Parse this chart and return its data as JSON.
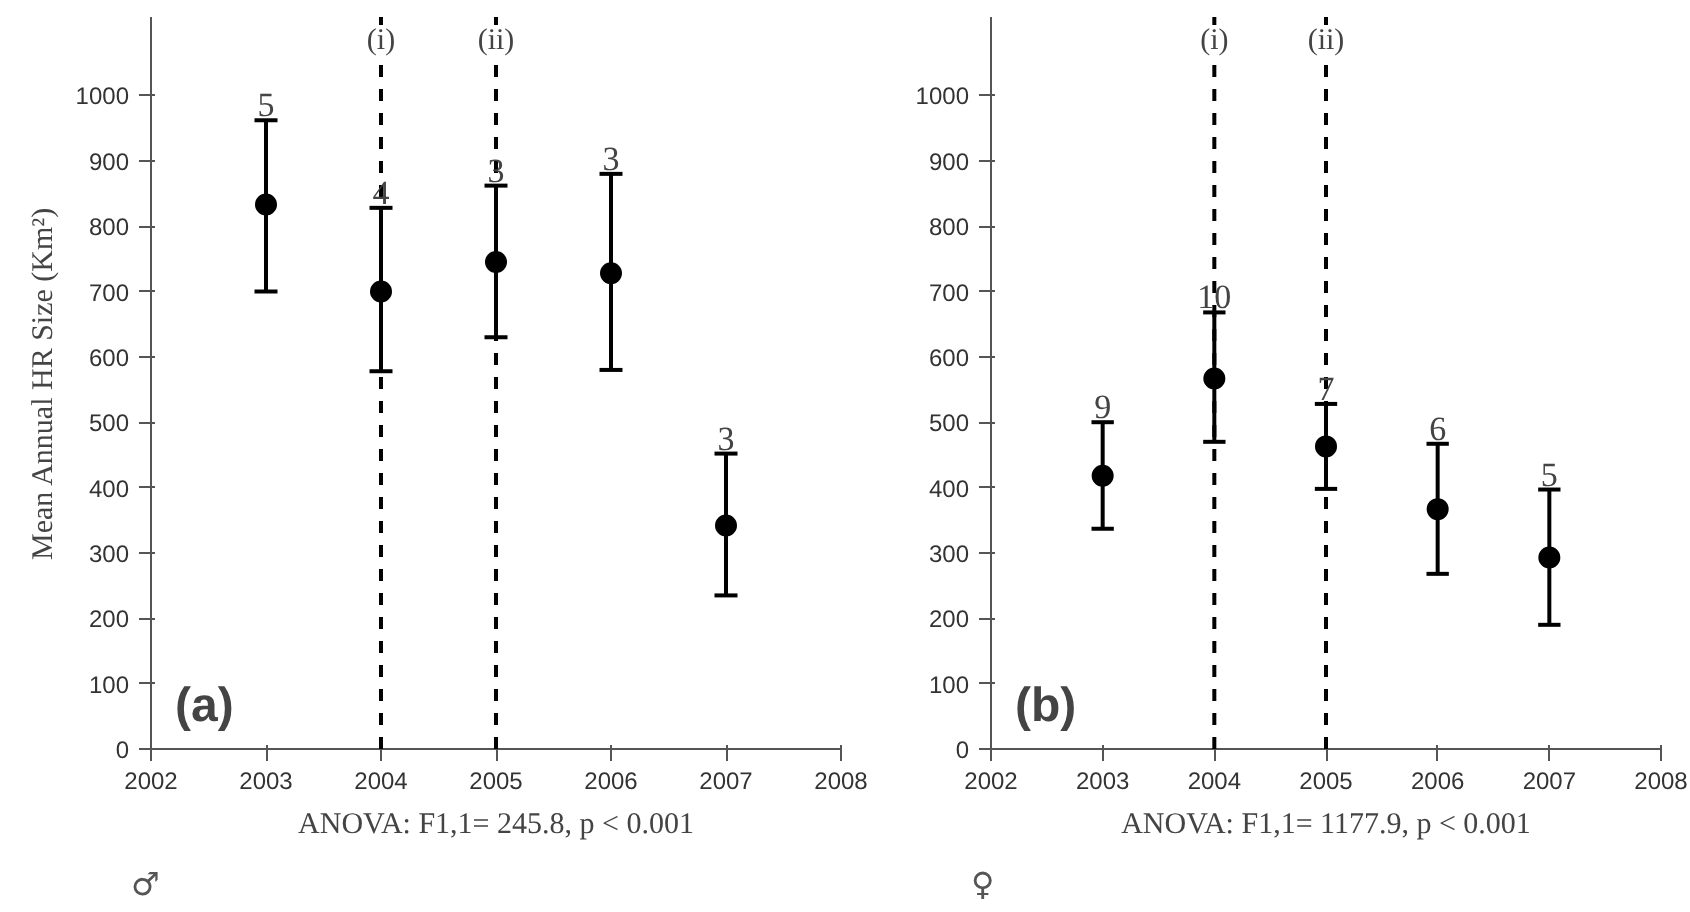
{
  "chart_data": [
    {
      "type": "scatter",
      "ylabel": "Mean Annual HR Size (Km²)",
      "x": [
        2003,
        2004,
        2005,
        2006,
        2007
      ],
      "values": [
        833,
        700,
        745,
        728,
        342
      ],
      "color": "#000000",
      "marker": "circle",
      "errors": [
        [
          700,
          962
        ],
        [
          578,
          828
        ],
        [
          630,
          862
        ],
        [
          580,
          880
        ],
        [
          235,
          452
        ]
      ],
      "xlim": [
        2002,
        2008
      ],
      "xticks": [
        2002,
        2003,
        2004,
        2005,
        2006,
        2007,
        2008
      ],
      "ylim": [
        0,
        1120
      ],
      "yticks": [
        0,
        100,
        200,
        300,
        400,
        500,
        600,
        700,
        800,
        900,
        1000
      ],
      "grid": false,
      "ref_lines": [
        {
          "axis": "x",
          "value": 2004,
          "label": "(i)",
          "line_style": "dashed"
        },
        {
          "axis": "x",
          "value": 2005,
          "label": "(ii)",
          "line_style": "dashed"
        }
      ],
      "annotations": [
        "(a)",
        "♂",
        "ANOVA: F1,1= 245.8, p < 0.001",
        {
          "text": "5",
          "x": 2003,
          "y": 962
        },
        {
          "text": "4",
          "x": 2004,
          "y": 828
        },
        {
          "text": "3",
          "x": 2005,
          "y": 862
        },
        {
          "text": "3",
          "x": 2006,
          "y": 880
        },
        {
          "text": "3",
          "x": 2007,
          "y": 452
        }
      ]
    },
    {
      "type": "scatter",
      "x": [
        2003,
        2004,
        2005,
        2006,
        2007
      ],
      "values": [
        418,
        567,
        463,
        367,
        293
      ],
      "color": "#000000",
      "marker": "circle",
      "errors": [
        [
          337,
          500
        ],
        [
          470,
          668
        ],
        [
          398,
          528
        ],
        [
          268,
          467
        ],
        [
          190,
          397
        ]
      ],
      "xlim": [
        2002,
        2008
      ],
      "xticks": [
        2002,
        2003,
        2004,
        2005,
        2006,
        2007,
        2008
      ],
      "ylim": [
        0,
        1120
      ],
      "yticks": [
        0,
        100,
        200,
        300,
        400,
        500,
        600,
        700,
        800,
        900,
        1000
      ],
      "grid": false,
      "ref_lines": [
        {
          "axis": "x",
          "value": 2004,
          "label": "(i)",
          "line_style": "dashed"
        },
        {
          "axis": "x",
          "value": 2005,
          "label": "(ii)",
          "line_style": "dashed"
        }
      ],
      "annotations": [
        "(b)",
        "♀",
        "ANOVA: F1,1= 1177.9, p < 0.001",
        {
          "text": "9",
          "x": 2003,
          "y": 500
        },
        {
          "text": "10",
          "x": 2004,
          "y": 668
        },
        {
          "text": "7",
          "x": 2005,
          "y": 528
        },
        {
          "text": "6",
          "x": 2006,
          "y": 467
        },
        {
          "text": "5",
          "x": 2007,
          "y": 397
        }
      ]
    }
  ]
}
